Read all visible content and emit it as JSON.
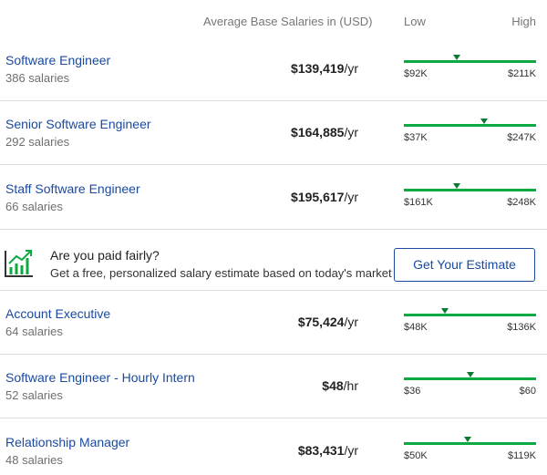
{
  "header": {
    "column": "Average Base Salaries in (USD)",
    "low": "Low",
    "high": "High"
  },
  "jobs": [
    {
      "title": "Software Engineer",
      "count": "386 salaries",
      "salary": "$139,419",
      "unit": "/yr",
      "low": "$92K",
      "high": "$211K"
    },
    {
      "title": "Senior Software Engineer",
      "count": "292 salaries",
      "salary": "$164,885",
      "unit": "/yr",
      "low": "$37K",
      "high": "$247K"
    },
    {
      "title": "Staff Software Engineer",
      "count": "66 salaries",
      "salary": "$195,617",
      "unit": "/yr",
      "low": "$161K",
      "high": "$248K"
    },
    {
      "title": "Account Executive",
      "count": "64 salaries",
      "salary": "$75,424",
      "unit": "/yr",
      "low": "$48K",
      "high": "$136K"
    },
    {
      "title": "Software Engineer - Hourly Intern",
      "count": "52 salaries",
      "salary": "$48",
      "unit": "/hr",
      "low": "$36",
      "high": "$60"
    },
    {
      "title": "Relationship Manager",
      "count": "48 salaries",
      "salary": "$83,431",
      "unit": "/yr",
      "low": "$50K",
      "high": "$119K"
    }
  ],
  "banner": {
    "title": "Are you paid fairly?",
    "text": "Get a free, personalized salary estimate based on today's market",
    "button": "Get Your Estimate"
  }
}
